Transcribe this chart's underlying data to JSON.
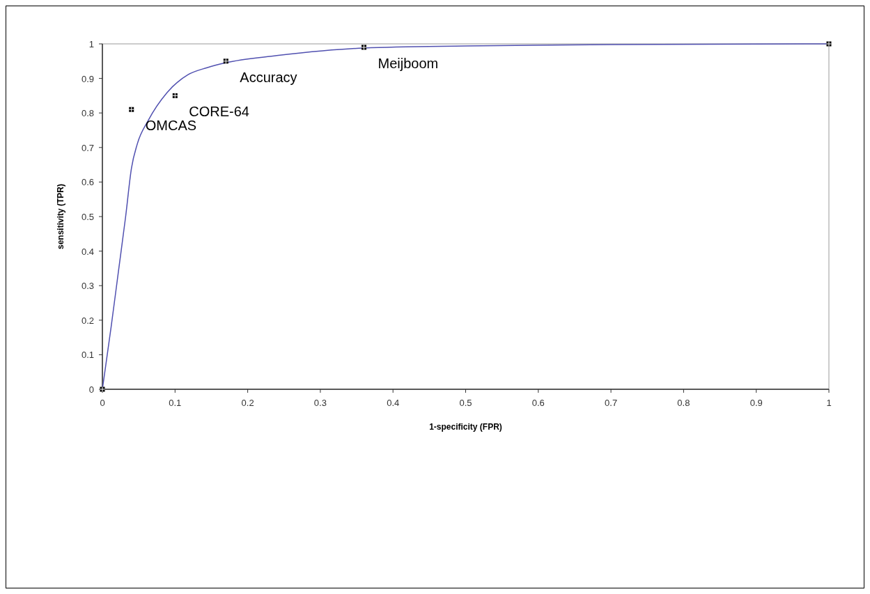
{
  "chart_data": {
    "type": "scatter",
    "xlabel": "1-specificity  (FPR)",
    "ylabel": "sensitivity (TPR)",
    "xlim": [
      0,
      1
    ],
    "ylim": [
      0,
      1
    ],
    "xticks": [
      0,
      0.1,
      0.2,
      0.3,
      0.4,
      0.5,
      0.6,
      0.7,
      0.8,
      0.9,
      1
    ],
    "yticks": [
      0,
      0.1,
      0.2,
      0.3,
      0.4,
      0.5,
      0.6,
      0.7,
      0.8,
      0.9,
      1
    ],
    "grid": false,
    "marker": "square",
    "series": [
      {
        "color": "#000000",
        "x": [
          0,
          0.04,
          0.1,
          0.17,
          0.36,
          1
        ],
        "values": [
          0,
          0.81,
          0.85,
          0.95,
          0.99,
          1
        ]
      },
      {
        "type": "line",
        "color": "#5050b0",
        "marker": "none",
        "x": [
          0,
          0.012,
          0.022,
          0.032,
          0.04,
          0.048,
          0.063,
          0.089,
          0.118,
          0.144,
          0.169,
          0.24,
          0.303,
          0.36,
          0.5,
          0.7,
          1
        ],
        "values": [
          0,
          0.18,
          0.34,
          0.5,
          0.64,
          0.71,
          0.778,
          0.859,
          0.911,
          0.931,
          0.945,
          0.966,
          0.98,
          0.988,
          0.994,
          0.998,
          1
        ]
      }
    ],
    "annotations": [
      {
        "text": "OMCAS",
        "x": 0.04,
        "y": 0.81
      },
      {
        "text": "CORE-64",
        "x": 0.1,
        "y": 0.85
      },
      {
        "text": "Accuracy",
        "x": 0.17,
        "y": 0.95
      },
      {
        "text": "Meijboom",
        "x": 0.36,
        "y": 0.99
      }
    ]
  }
}
